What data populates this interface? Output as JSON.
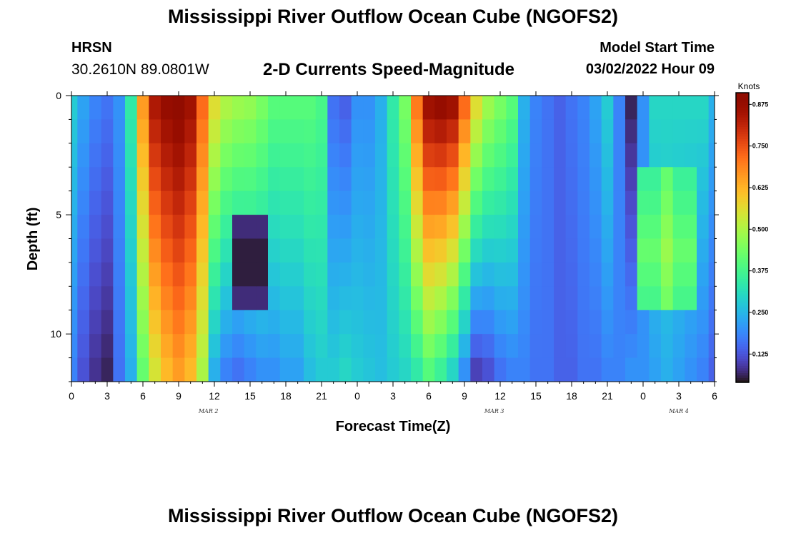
{
  "header": {
    "title": "Mississippi River Outflow Ocean Cube (NGOFS2)",
    "station_name": "HRSN",
    "station_coords": "30.2610N  89.0801W",
    "subtitle": "2-D Currents Speed-Magnitude",
    "start_label": "Model Start Time",
    "start_value": "03/02/2022 Hour 09"
  },
  "footer": {
    "title": "Mississippi River Outflow Ocean Cube (NGOFS2)"
  },
  "chart_data": {
    "type": "heatmap",
    "title": "2-D Currents Speed-Magnitude",
    "xlabel": "Forecast Time(Z)",
    "ylabel": "Depth (ft)",
    "x_tick_labels": [
      "0",
      "3",
      "6",
      "9",
      "12",
      "15",
      "18",
      "21",
      "0",
      "3",
      "6",
      "9",
      "12",
      "15",
      "18",
      "21",
      "0",
      "3",
      "6"
    ],
    "x_range_hours": [
      0,
      54
    ],
    "date_labels": [
      {
        "text": "MAR 2",
        "hour": 11.5
      },
      {
        "text": "MAR 3",
        "hour": 35.5
      },
      {
        "text": "MAR 4",
        "hour": 51
      }
    ],
    "y_ticks": [
      "0",
      "5",
      "10"
    ],
    "y_range_ft": [
      0,
      12
    ],
    "y_inverted": true,
    "colorbar": {
      "unit": "Knots",
      "range": [
        0.04,
        0.91
      ],
      "ticks": [
        "0.125",
        "0.250",
        "0.375",
        "0.500",
        "0.625",
        "0.750",
        "0.875"
      ],
      "tick_values": [
        0.125,
        0.25,
        0.375,
        0.5,
        0.625,
        0.75,
        0.875
      ],
      "colormap": "turbo"
    },
    "grid": false,
    "x_hours": [
      0,
      1,
      2,
      3,
      4,
      5,
      6,
      7,
      8,
      9,
      10,
      11,
      12,
      13,
      14,
      15,
      16,
      17,
      18,
      19,
      20,
      21,
      22,
      23,
      24,
      25,
      26,
      27,
      28,
      29,
      30,
      31,
      32,
      33,
      34,
      35,
      36,
      37,
      38,
      39,
      40,
      41,
      42,
      43,
      44,
      45,
      46,
      47,
      48,
      49,
      50,
      51,
      52,
      53,
      54
    ],
    "depth_ft": [
      0.5,
      1.5,
      2.5,
      3.5,
      4.5,
      5.5,
      6.5,
      7.5,
      8.5,
      9.5,
      10.5,
      11.5
    ],
    "surface_speed_knots": [
      0.28,
      0.22,
      0.18,
      0.16,
      0.2,
      0.34,
      0.66,
      0.84,
      0.88,
      0.9,
      0.86,
      0.72,
      0.56,
      0.5,
      0.48,
      0.47,
      0.44,
      0.4,
      0.4,
      0.4,
      0.4,
      0.38,
      0.16,
      0.14,
      0.2,
      0.2,
      0.24,
      0.34,
      0.44,
      0.7,
      0.86,
      0.88,
      0.86,
      0.72,
      0.56,
      0.48,
      0.44,
      0.4,
      0.24,
      0.18,
      0.16,
      0.14,
      0.16,
      0.18,
      0.22,
      0.28,
      0.18,
      0.06,
      0.2,
      0.3,
      0.3,
      0.3,
      0.3,
      0.3,
      0.24
    ],
    "bottom_speed_knots": [
      0.18,
      0.12,
      0.08,
      0.06,
      0.16,
      0.24,
      0.42,
      0.55,
      0.62,
      0.66,
      0.62,
      0.5,
      0.24,
      0.18,
      0.16,
      0.18,
      0.2,
      0.2,
      0.22,
      0.22,
      0.26,
      0.28,
      0.28,
      0.3,
      0.28,
      0.27,
      0.26,
      0.28,
      0.3,
      0.34,
      0.4,
      0.36,
      0.3,
      0.2,
      0.1,
      0.12,
      0.16,
      0.18,
      0.18,
      0.16,
      0.16,
      0.14,
      0.14,
      0.16,
      0.16,
      0.18,
      0.18,
      0.2,
      0.2,
      0.22,
      0.24,
      0.22,
      0.2,
      0.18,
      0.14
    ],
    "min_speed_knots": 0.04,
    "max_speed_knots": 0.91
  }
}
